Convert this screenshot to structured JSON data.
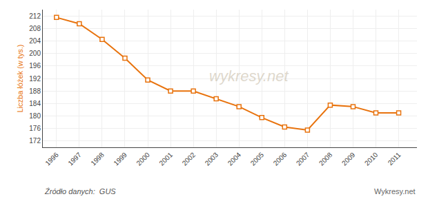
{
  "chart_data": {
    "type": "line",
    "x": [
      1996,
      1997,
      1998,
      1999,
      2000,
      2001,
      2002,
      2003,
      2004,
      2005,
      2006,
      2007,
      2008,
      2009,
      2010,
      2011
    ],
    "values": [
      211.5,
      209.5,
      204.5,
      198.5,
      191.5,
      188.0,
      188.0,
      185.5,
      183.0,
      179.5,
      176.5,
      175.5,
      183.5,
      183.0,
      181.0,
      181.0
    ],
    "color": "#e8720c",
    "marker": "square",
    "y_label": "Liczba łóżek (w tys.)",
    "xlim": [
      1995.4,
      2011.8
    ],
    "xticks": [
      1996,
      1997,
      1998,
      1999,
      2000,
      2001,
      2002,
      2003,
      2004,
      2005,
      2006,
      2007,
      2008,
      2009,
      2010,
      2011
    ],
    "ylim": [
      170,
      214
    ],
    "yticks": [
      172,
      176,
      180,
      184,
      188,
      192,
      196,
      200,
      204,
      208,
      212
    ],
    "grid": true,
    "annotations": [
      "wykresy.net",
      "Źródło danych:  GUS",
      "Wykresy.net"
    ]
  }
}
